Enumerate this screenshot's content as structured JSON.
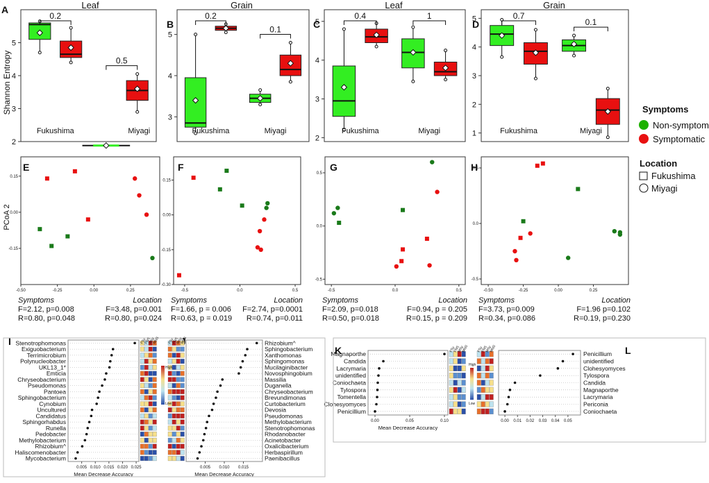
{
  "colors": {
    "green": "#1db100",
    "green_fill": "#33ee22",
    "red": "#e81010",
    "dark_green": "#1a7a1a",
    "frame": "#333333"
  },
  "chart_data": [
    {
      "id": "A",
      "type": "box",
      "title": "Leaf",
      "ylabel": "Shannon Entropy",
      "ylim": [
        2,
        6
      ],
      "yticks": [
        2,
        3,
        4,
        5
      ],
      "categories": [
        "Fukushima",
        "Miyagi"
      ],
      "boxes": [
        {
          "group": "Fukushima",
          "symptom": "Non-symptomatic",
          "min": 4.7,
          "q1": 5.1,
          "median": 5.55,
          "q3": 5.6,
          "max": 5.65,
          "mean": 5.3
        },
        {
          "group": "Fukushima",
          "symptom": "Symptomatic",
          "min": 4.4,
          "q1": 4.55,
          "median": 4.65,
          "q3": 5.05,
          "max": 5.45,
          "mean": 4.85
        },
        {
          "group": "Miyagi",
          "symptom": "Non-symptomatic",
          "min": 1.88,
          "q1": 1.88,
          "median": 1.88,
          "q3": 1.88,
          "max": 1.88,
          "mean": 1.88
        },
        {
          "group": "Miyagi",
          "symptom": "Symptomatic",
          "min": 2.9,
          "q1": 3.25,
          "median": 3.55,
          "q3": 3.85,
          "max": 4.05,
          "mean": 3.6
        }
      ],
      "annotations": [
        {
          "label": "0.2",
          "group": "Fukushima"
        },
        {
          "label": "0.5",
          "group": "Miyagi"
        }
      ]
    },
    {
      "id": "B",
      "type": "box",
      "title": "Grain",
      "ylim": [
        2.4,
        5.6
      ],
      "yticks": [
        3,
        4,
        5
      ],
      "categories": [
        "Fukushima",
        "Miyagi"
      ],
      "boxes": [
        {
          "group": "Fukushima",
          "symptom": "Non-symptomatic",
          "min": 2.6,
          "q1": 2.75,
          "median": 2.85,
          "q3": 3.95,
          "max": 5.0,
          "mean": 3.4
        },
        {
          "group": "Fukushima",
          "symptom": "Symptomatic",
          "min": 5.05,
          "q1": 5.1,
          "median": 5.15,
          "q3": 5.2,
          "max": 5.25,
          "mean": 5.15
        },
        {
          "group": "Miyagi",
          "symptom": "Non-symptomatic",
          "min": 3.3,
          "q1": 3.35,
          "median": 3.45,
          "q3": 3.55,
          "max": 3.65,
          "mean": 3.45
        },
        {
          "group": "Miyagi",
          "symptom": "Symptomatic",
          "min": 3.85,
          "q1": 4.0,
          "median": 4.15,
          "q3": 4.5,
          "max": 4.8,
          "mean": 4.3
        }
      ],
      "annotations": [
        {
          "label": "0.2",
          "group": "Fukushima"
        },
        {
          "label": "0.1",
          "group": "Miyagi"
        }
      ]
    },
    {
      "id": "C",
      "type": "box",
      "title": "Leaf",
      "ylim": [
        1.9,
        5.3
      ],
      "yticks": [
        2,
        3,
        4,
        5
      ],
      "categories": [
        "Fukushima",
        "Miyagi"
      ],
      "boxes": [
        {
          "group": "Fukushima",
          "symptom": "Non-symptomatic",
          "min": 2.2,
          "q1": 2.55,
          "median": 2.95,
          "q3": 3.85,
          "max": 4.8,
          "mean": 3.3
        },
        {
          "group": "Fukushima",
          "symptom": "Symptomatic",
          "min": 4.35,
          "q1": 4.45,
          "median": 4.6,
          "q3": 4.8,
          "max": 4.95,
          "mean": 4.65
        },
        {
          "group": "Miyagi",
          "symptom": "Non-symptomatic",
          "min": 3.45,
          "q1": 3.8,
          "median": 4.2,
          "q3": 4.55,
          "max": 4.85,
          "mean": 4.2
        },
        {
          "group": "Miyagi",
          "symptom": "Symptomatic",
          "min": 3.5,
          "q1": 3.6,
          "median": 3.7,
          "q3": 3.95,
          "max": 4.25,
          "mean": 3.8
        }
      ],
      "annotations": [
        {
          "label": "0.4",
          "group": "Fukushima"
        },
        {
          "label": "1",
          "group": "Miyagi"
        }
      ]
    },
    {
      "id": "D",
      "type": "box",
      "title": "Grain",
      "ylim": [
        0.7,
        5.3
      ],
      "yticks": [
        1,
        2,
        3,
        4,
        5
      ],
      "categories": [
        "Fukushima",
        "Miyagi"
      ],
      "boxes": [
        {
          "group": "Fukushima",
          "symptom": "Non-symptomatic",
          "min": 3.65,
          "q1": 4.05,
          "median": 4.45,
          "q3": 4.75,
          "max": 4.95,
          "mean": 4.4
        },
        {
          "group": "Fukushima",
          "symptom": "Symptomatic",
          "min": 2.9,
          "q1": 3.4,
          "median": 3.85,
          "q3": 4.15,
          "max": 4.6,
          "mean": 3.8
        },
        {
          "group": "Miyagi",
          "symptom": "Non-symptomatic",
          "min": 3.7,
          "q1": 3.85,
          "median": 4.05,
          "q3": 4.25,
          "max": 4.4,
          "mean": 4.1
        },
        {
          "group": "Miyagi",
          "symptom": "Symptomatic",
          "min": 0.85,
          "q1": 1.3,
          "median": 1.8,
          "q3": 2.2,
          "max": 2.55,
          "mean": 1.75
        }
      ],
      "annotations": [
        {
          "label": "0.7",
          "group": "Fukushima"
        },
        {
          "label": "0.1",
          "group": "Miyagi"
        }
      ]
    },
    {
      "id": "E",
      "type": "scatter",
      "ylabel": "PCoA 2",
      "xlim": [
        -0.5,
        0.45
      ],
      "ylim": [
        -0.3,
        0.23
      ],
      "xticks": [
        -0.5,
        -0.25,
        0.0,
        0.25
      ],
      "xtick_labels": [
        "-0.50",
        "-0.25",
        "0.00",
        "0.25"
      ],
      "yticks": [
        -0.15,
        0.0,
        0.15
      ],
      "ytick_labels": [
        "-0.15",
        "0.00",
        "0.15"
      ],
      "points": [
        {
          "x": -0.32,
          "y": 0.14,
          "shape": "square",
          "symptom": "Symptomatic"
        },
        {
          "x": -0.13,
          "y": 0.17,
          "shape": "square",
          "symptom": "Symptomatic"
        },
        {
          "x": -0.04,
          "y": -0.03,
          "shape": "square",
          "symptom": "Symptomatic"
        },
        {
          "x": -0.37,
          "y": -0.07,
          "shape": "square",
          "symptom": "Non-symptomatic"
        },
        {
          "x": -0.18,
          "y": -0.1,
          "shape": "square",
          "symptom": "Non-symptomatic"
        },
        {
          "x": -0.29,
          "y": -0.14,
          "shape": "square",
          "symptom": "Non-symptomatic"
        },
        {
          "x": 0.28,
          "y": 0.14,
          "shape": "circle",
          "symptom": "Symptomatic"
        },
        {
          "x": 0.31,
          "y": 0.07,
          "shape": "circle",
          "symptom": "Symptomatic"
        },
        {
          "x": 0.36,
          "y": -0.01,
          "shape": "circle",
          "symptom": "Symptomatic"
        },
        {
          "x": 0.4,
          "y": -0.19,
          "shape": "circle",
          "symptom": "Non-symptomatic"
        }
      ],
      "stats": {
        "left_title": "Symptoms",
        "left_l1": "F=2.12, p=0.008",
        "left_l2": "R=0.80, p=0.048",
        "right_title": "Location",
        "right_l1": "F=3.48, p=0.001",
        "right_l2": "R=0.80, p=0.024"
      }
    },
    {
      "id": "F",
      "type": "scatter",
      "xlim": [
        -0.6,
        0.55
      ],
      "ylim": [
        -0.3,
        0.25
      ],
      "xticks": [
        -0.5,
        0.0,
        0.5
      ],
      "xtick_labels": [
        "-0.5",
        "0.0",
        "0.5"
      ],
      "yticks": [
        -0.3,
        -0.15,
        0.0,
        0.15
      ],
      "ytick_labels": [
        "-0.30",
        "-0.15",
        "0.00",
        "0.15"
      ],
      "points": [
        {
          "x": -0.42,
          "y": 0.16,
          "shape": "square",
          "symptom": "Symptomatic"
        },
        {
          "x": -0.55,
          "y": -0.26,
          "shape": "square",
          "symptom": "Symptomatic"
        },
        {
          "x": -0.12,
          "y": 0.19,
          "shape": "square",
          "symptom": "Non-symptomatic"
        },
        {
          "x": -0.18,
          "y": 0.11,
          "shape": "square",
          "symptom": "Non-symptomatic"
        },
        {
          "x": 0.02,
          "y": 0.04,
          "shape": "square",
          "symptom": "Non-symptomatic"
        },
        {
          "x": 0.25,
          "y": 0.05,
          "shape": "circle",
          "symptom": "Non-symptomatic"
        },
        {
          "x": 0.24,
          "y": 0.03,
          "shape": "circle",
          "symptom": "Non-symptomatic"
        },
        {
          "x": 0.22,
          "y": -0.02,
          "shape": "circle",
          "symptom": "Symptomatic"
        },
        {
          "x": 0.18,
          "y": -0.07,
          "shape": "circle",
          "symptom": "Symptomatic"
        },
        {
          "x": 0.16,
          "y": -0.14,
          "shape": "circle",
          "symptom": "Symptomatic"
        },
        {
          "x": 0.19,
          "y": -0.15,
          "shape": "circle",
          "symptom": "Symptomatic"
        }
      ],
      "stats": {
        "left_title": "Symptoms",
        "left_l1": "F=1.66, p = 0.006",
        "left_l2": "R=0.63, p = 0.019",
        "right_title": "Location",
        "right_l1": "F=2.74, p=0.0001",
        "right_l2": "R=0.74, p=0.011"
      }
    },
    {
      "id": "G",
      "type": "scatter",
      "xlim": [
        -0.55,
        0.55
      ],
      "ylim": [
        -0.55,
        0.65
      ],
      "xticks": [
        -0.5,
        0.0,
        0.5
      ],
      "xtick_labels": [
        "-0.5",
        "0.0",
        "0.5"
      ],
      "yticks": [
        -0.5,
        0.0,
        0.5
      ],
      "ytick_labels": [
        "-0.5",
        "0.0",
        "0.5"
      ],
      "points": [
        {
          "x": -0.45,
          "y": 0.17,
          "shape": "circle",
          "symptom": "Non-symptomatic"
        },
        {
          "x": -0.48,
          "y": 0.12,
          "shape": "circle",
          "symptom": "Non-symptomatic"
        },
        {
          "x": -0.44,
          "y": 0.03,
          "shape": "square",
          "symptom": "Non-symptomatic"
        },
        {
          "x": 0.06,
          "y": 0.15,
          "shape": "square",
          "symptom": "Non-symptomatic"
        },
        {
          "x": 0.29,
          "y": 0.6,
          "shape": "circle",
          "symptom": "Non-symptomatic"
        },
        {
          "x": 0.33,
          "y": 0.32,
          "shape": "circle",
          "symptom": "Symptomatic"
        },
        {
          "x": 0.06,
          "y": -0.22,
          "shape": "square",
          "symptom": "Symptomatic"
        },
        {
          "x": 0.05,
          "y": -0.33,
          "shape": "square",
          "symptom": "Symptomatic"
        },
        {
          "x": 0.25,
          "y": -0.12,
          "shape": "square",
          "symptom": "Symptomatic"
        },
        {
          "x": 0.01,
          "y": -0.38,
          "shape": "circle",
          "symptom": "Symptomatic"
        },
        {
          "x": 0.27,
          "y": -0.37,
          "shape": "circle",
          "symptom": "Symptomatic"
        }
      ],
      "stats": {
        "left_title": "Symptoms",
        "left_l1": "F=2.09, p=0.018",
        "left_l2": "R=0.50, p=0.018",
        "right_title": "Location",
        "right_l1": "F=0.94, p = 0.205",
        "right_l2": "R=0.15, p = 0.209"
      }
    },
    {
      "id": "H",
      "type": "scatter",
      "xlim": [
        -0.55,
        0.5
      ],
      "ylim": [
        -0.55,
        0.6
      ],
      "xticks": [
        -0.5,
        -0.25,
        0.0,
        0.25
      ],
      "xtick_labels": [
        "-0.50",
        "-0.25",
        "0.00",
        "0.25"
      ],
      "yticks": [
        -0.5,
        0.0,
        0.5
      ],
      "ytick_labels": [
        "-0.5",
        "0.0",
        "0.5"
      ],
      "points": [
        {
          "x": -0.15,
          "y": 0.52,
          "shape": "square",
          "symptom": "Symptomatic"
        },
        {
          "x": -0.11,
          "y": 0.54,
          "shape": "square",
          "symptom": "Symptomatic"
        },
        {
          "x": 0.14,
          "y": 0.31,
          "shape": "square",
          "symptom": "Non-symptomatic"
        },
        {
          "x": -0.25,
          "y": 0.02,
          "shape": "square",
          "symptom": "Non-symptomatic"
        },
        {
          "x": -0.27,
          "y": -0.13,
          "shape": "square",
          "symptom": "Symptomatic"
        },
        {
          "x": -0.2,
          "y": -0.09,
          "shape": "circle",
          "symptom": "Symptomatic"
        },
        {
          "x": -0.31,
          "y": -0.25,
          "shape": "circle",
          "symptom": "Symptomatic"
        },
        {
          "x": -0.3,
          "y": -0.33,
          "shape": "circle",
          "symptom": "Symptomatic"
        },
        {
          "x": 0.07,
          "y": -0.31,
          "shape": "circle",
          "symptom": "Non-symptomatic"
        },
        {
          "x": 0.4,
          "y": -0.07,
          "shape": "circle",
          "symptom": "Non-symptomatic"
        },
        {
          "x": 0.44,
          "y": -0.08,
          "shape": "circle",
          "symptom": "Non-symptomatic"
        },
        {
          "x": 0.44,
          "y": -0.1,
          "shape": "circle",
          "symptom": "Non-symptomatic"
        }
      ],
      "stats": {
        "left_title": "Symptoms",
        "left_l1": "F=3.73, p=0.009",
        "left_l2": "R=0.34, p=0.086",
        "right_title": "Location",
        "right_l1": "F=1.96 p=0.102",
        "right_l2": "R=0.19, p=0.230"
      }
    },
    {
      "id": "I",
      "type": "dotplot",
      "xlabel": "Mean Decrease Accuracy",
      "xlim": [
        0.0,
        0.026
      ],
      "xticks": [
        0.005,
        0.01,
        0.015,
        0.02,
        0.025
      ],
      "xtick_labels": [
        "0.005",
        "0.010",
        "0.015",
        "0.020",
        "0.025"
      ],
      "categories": [
        "Stenotrophomonas",
        "Exiguobacterium",
        "Terrimicrobium",
        "Polynucleobacter",
        "UKL13_1*",
        "Emticia",
        "Chryseobacterium",
        "Pseudomonas",
        "Pantoea",
        "Sphingobacterium",
        "Cynobium",
        "Uncultured",
        "Candidatus",
        "Sphingorhabdus",
        "Runella",
        "Pedobacter",
        "Methylobacterium",
        "Rhizobium^",
        "Haliscomenobacter",
        "Mycobacterium"
      ],
      "values": [
        0.0245,
        0.0165,
        0.016,
        0.0155,
        0.0152,
        0.014,
        0.0135,
        0.0125,
        0.0115,
        0.011,
        0.0105,
        0.0088,
        0.0085,
        0.0078,
        0.0072,
        0.0068,
        0.0062,
        0.0052,
        0.0035,
        0.0028
      ]
    },
    {
      "id": "J",
      "type": "dotplot",
      "xlabel": "Mean Decrease Accuracy",
      "xlim": [
        0.0,
        0.02
      ],
      "xticks": [
        0.005,
        0.01,
        0.015
      ],
      "xtick_labels": [
        "0.005",
        "0.010",
        "0.015"
      ],
      "categories": [
        "Rhizobium^",
        "Sphingobacterium",
        "Xanthomonas",
        "Sphingomonas",
        "Mucilaginibacter",
        "Novosphingobium",
        "Massilia",
        "Duganella",
        "Chryseobacterium",
        "Brevundimonas",
        "Curtobacterium",
        "Devosia",
        "Pseudomonas",
        "Methylobacterium",
        "Stenotrophomonas",
        "Rhodanobacter",
        "Acinetobacter",
        "Oxalicibacterium",
        "Herbaspirillum",
        "Paenibacillus"
      ],
      "values": [
        0.0185,
        0.016,
        0.0155,
        0.0148,
        0.0143,
        0.0138,
        0.0095,
        0.009,
        0.0082,
        0.0078,
        0.0072,
        0.0068,
        0.006,
        0.0055,
        0.0052,
        0.0048,
        0.0045,
        0.004,
        0.0035,
        0.003
      ]
    },
    {
      "id": "K",
      "type": "dotplot",
      "xlabel": "Mean Decrease Accuracy",
      "xlim": [
        -0.01,
        0.105
      ],
      "xticks": [
        0.0,
        0.05,
        0.1
      ],
      "xtick_labels": [
        "0.00",
        "0.05",
        "0.10"
      ],
      "categories": [
        "Magnaporthe",
        "Candida",
        "Lacrymaria",
        "unidentified",
        "Coniochaeta",
        "Tylospora",
        "Tomentella",
        "Clohesyomyces",
        "Penicillium"
      ],
      "values": [
        0.1,
        0.012,
        0.006,
        0.005,
        0.004,
        0.0035,
        0.003,
        0.002,
        0.0
      ]
    },
    {
      "id": "L",
      "type": "dotplot",
      "xlabel": "",
      "xlim": [
        -0.005,
        0.06
      ],
      "xticks": [
        0.0,
        0.01,
        0.02,
        0.03,
        0.04,
        0.05
      ],
      "xtick_labels": [
        "0.00",
        "0.01",
        "0.02",
        "0.03",
        "0.04",
        "0.05"
      ],
      "categories": [
        "Penicillium",
        "unidentified",
        "Clohesyomyces",
        "Tylospora",
        "Candida",
        "Magnaporthe",
        "Lacrymaria",
        "Periconia",
        "Coniochaeta"
      ],
      "values": [
        0.054,
        0.046,
        0.042,
        0.028,
        0.008,
        0.004,
        0.003,
        0.002,
        0.0
      ]
    }
  ],
  "legend": {
    "symptoms_title": "Symptoms",
    "non_symptomatic": "Non-symptomatic",
    "symptomatic": "Symptomatic",
    "location_title": "Location",
    "fukushima": "Fukushima",
    "miyagi": "Miyagi"
  },
  "heatmap": {
    "col_labels": [
      "FSy",
      "FNS",
      "MSy",
      "MNS"
    ],
    "high_label": "High",
    "low_label": "Low"
  },
  "heatmap_fungal": {
    "col_labels": [
      "FSy",
      "FNS",
      "MSy",
      "MNS"
    ],
    "high_label": "High",
    "low_label": "Low"
  }
}
